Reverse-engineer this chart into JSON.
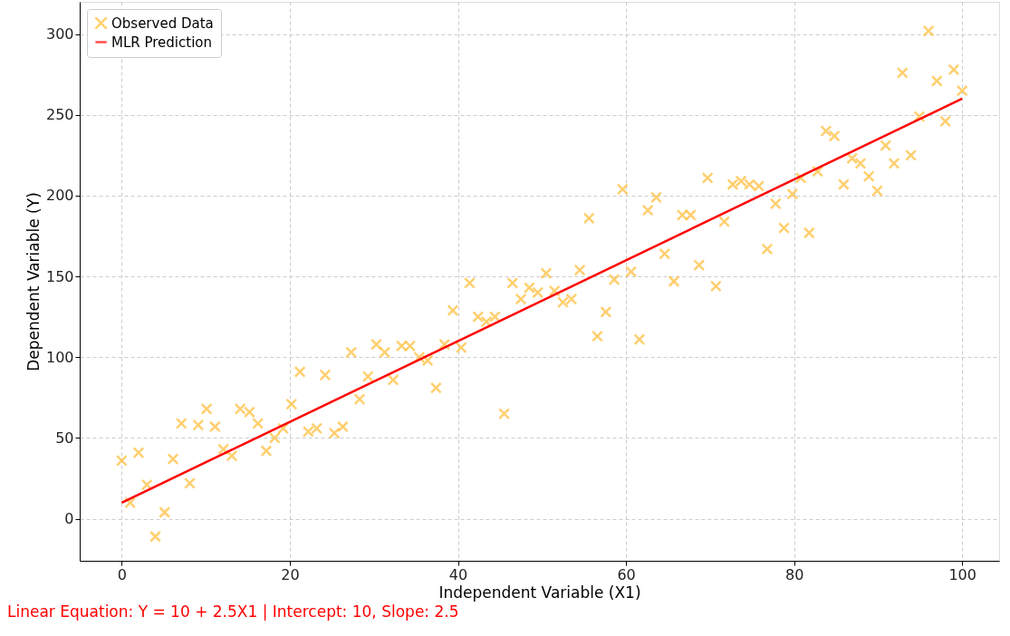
{
  "chart_data": {
    "type": "scatter",
    "xlabel": "Independent Variable (X1)",
    "ylabel": "Dependent Variable (Y)",
    "annotations": [
      "Linear Equation: Y = 10 + 2.5X1 | Intercept: 10, Slope: 2.5"
    ],
    "xlim": [
      -5,
      104.4
    ],
    "ylim": [
      -26,
      320
    ],
    "xticks": [
      0,
      20,
      40,
      60,
      80,
      100
    ],
    "yticks": [
      0,
      50,
      100,
      150,
      200,
      250,
      300
    ],
    "grid": true,
    "legend": "top left",
    "series": [
      {
        "name": "Observed Data",
        "type": "scatter",
        "marker": "cross",
        "color": "#ffbb33",
        "x": [
          0,
          1,
          2,
          3,
          4,
          5.1,
          6.1,
          7.1,
          8.1,
          9.1,
          10.1,
          11.1,
          12.1,
          13.1,
          14.1,
          15.2,
          16.2,
          17.2,
          18.2,
          19.2,
          20.2,
          21.2,
          22.2,
          23.2,
          24.2,
          25.3,
          26.3,
          27.3,
          28.3,
          29.3,
          30.3,
          31.3,
          32.3,
          33.3,
          34.3,
          35.4,
          36.4,
          37.4,
          38.4,
          39.4,
          40.4,
          41.4,
          42.4,
          43.4,
          44.4,
          45.5,
          46.5,
          47.5,
          48.5,
          49.5,
          50.5,
          51.5,
          52.5,
          53.5,
          54.5,
          55.6,
          56.6,
          57.6,
          58.6,
          59.6,
          60.6,
          61.6,
          62.6,
          63.6,
          64.6,
          65.7,
          66.7,
          67.7,
          68.7,
          69.7,
          70.7,
          71.7,
          72.7,
          73.7,
          74.7,
          75.8,
          76.8,
          77.8,
          78.8,
          79.8,
          80.8,
          81.8,
          82.8,
          83.8,
          84.8,
          85.9,
          86.9,
          87.9,
          88.9,
          89.9,
          90.9,
          91.9,
          92.9,
          93.9,
          94.9,
          96,
          97,
          98,
          99,
          100
        ],
        "values": [
          36,
          10,
          41,
          21,
          -11,
          4,
          37,
          59,
          22,
          58,
          68,
          57,
          43,
          39,
          68,
          66,
          59,
          42,
          50,
          56,
          71,
          91,
          54,
          56,
          89,
          53,
          57,
          103,
          74,
          88,
          108,
          103,
          86,
          107,
          107,
          100,
          98,
          81,
          108,
          129,
          106,
          146,
          125,
          122,
          125,
          65,
          146,
          136,
          143,
          140,
          152,
          141,
          134,
          136,
          154,
          186,
          113,
          128,
          148,
          204,
          153,
          111,
          191,
          199,
          164,
          147,
          188,
          188,
          157,
          211,
          144,
          184,
          207,
          209,
          207,
          206,
          167,
          195,
          180,
          201,
          211,
          177,
          215,
          240,
          237,
          207,
          223,
          220,
          212,
          203,
          231,
          220,
          276,
          225,
          249,
          302,
          271,
          246,
          278,
          265
        ]
      },
      {
        "name": "MLR Prediction",
        "type": "line",
        "marker": "none",
        "line_style": "solid",
        "color": "#ff0000",
        "x": [
          0,
          100
        ],
        "values": [
          10,
          260
        ]
      }
    ]
  }
}
